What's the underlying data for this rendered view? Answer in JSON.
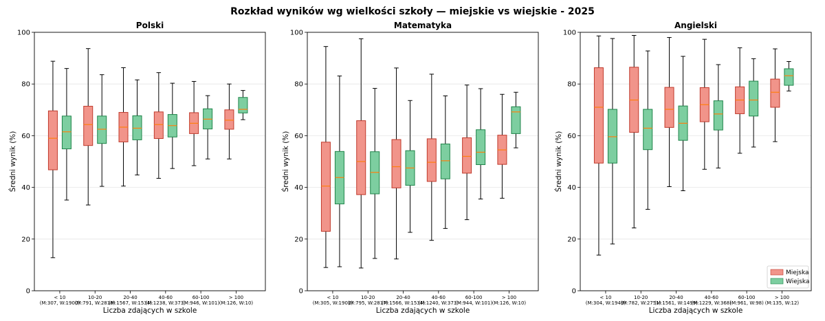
{
  "colors": {
    "urban_fill": "#f1948a",
    "urban_edge": "#c0392b",
    "rural_fill": "#7dcea0",
    "rural_edge": "#1e8449",
    "median": "#ff7f0e",
    "whisker": "#000000",
    "grid": "#e6e6e6"
  },
  "chart_data": {
    "type": "boxplot",
    "title": "Rozkład wyników wg wielkości szkoły — miejskie vs wiejskie - 2025",
    "xlabel": "Liczba zdających w szkole",
    "ylabel": "Średni wynik (%)",
    "ylim": [
      0,
      100
    ],
    "yticks": [
      0,
      20,
      40,
      60,
      80,
      100
    ],
    "legend": {
      "placement": "lower-right",
      "entries": [
        {
          "name": "Miejska",
          "color_key": "urban"
        },
        {
          "name": "Wiejska",
          "color_key": "rural"
        }
      ]
    },
    "subplots": [
      {
        "title": "Polski",
        "categories": [
          "< 10",
          "10-20",
          "20-40",
          "40-60",
          "60-100",
          "> 100"
        ],
        "counts": [
          "(M:307, W:1900)",
          "(M:791, W:2818)",
          "(M:1567, W:1534)",
          "(M:1238, W:373)",
          "(M:946, W:101)",
          "(M:126, W:10)"
        ],
        "series": [
          {
            "name": "Miejska",
            "stats": [
              {
                "min": 12.8,
                "q1": 46.8,
                "median": 59.0,
                "q3": 69.6,
                "max": 88.8
              },
              {
                "min": 33.2,
                "q1": 56.2,
                "median": 64.3,
                "q3": 71.4,
                "max": 93.7
              },
              {
                "min": 40.5,
                "q1": 57.6,
                "median": 63.3,
                "q3": 69.0,
                "max": 86.3
              },
              {
                "min": 43.5,
                "q1": 58.9,
                "median": 64.3,
                "q3": 69.2,
                "max": 84.4
              },
              {
                "min": 48.4,
                "q1": 60.8,
                "median": 64.8,
                "q3": 68.9,
                "max": 81.0
              },
              {
                "min": 51.0,
                "q1": 62.5,
                "median": 66.0,
                "q3": 70.0,
                "max": 80.0
              }
            ]
          },
          {
            "name": "Wiejska",
            "stats": [
              {
                "min": 35.1,
                "q1": 54.9,
                "median": 61.5,
                "q3": 67.6,
                "max": 86.0
              },
              {
                "min": 40.4,
                "q1": 57.0,
                "median": 62.5,
                "q3": 67.6,
                "max": 83.6
              },
              {
                "min": 44.8,
                "q1": 58.4,
                "median": 62.9,
                "q3": 67.7,
                "max": 81.6
              },
              {
                "min": 47.3,
                "q1": 59.5,
                "median": 63.9,
                "q3": 68.2,
                "max": 80.3
              },
              {
                "min": 51.0,
                "q1": 62.6,
                "median": 66.4,
                "q3": 70.4,
                "max": 75.5
              },
              {
                "min": 66.2,
                "q1": 68.8,
                "median": 70.2,
                "q3": 74.8,
                "max": 77.5
              }
            ]
          }
        ]
      },
      {
        "title": "Matematyka",
        "categories": [
          "< 10",
          "10-20",
          "20-40",
          "40-60",
          "60-100",
          "> 100"
        ],
        "counts": [
          "(M:305, W:1901)",
          "(M:795, W:2817)",
          "(M:1566, W:1534)",
          "(M:1240, W:373)",
          "(M:944, W:101)",
          "(M:126, W:10)"
        ],
        "series": [
          {
            "name": "Miejska",
            "stats": [
              {
                "min": 9.0,
                "q1": 23.0,
                "median": 40.5,
                "q3": 57.5,
                "max": 94.5
              },
              {
                "min": 8.8,
                "q1": 37.2,
                "median": 50.0,
                "q3": 65.8,
                "max": 97.5
              },
              {
                "min": 12.3,
                "q1": 39.8,
                "median": 48.0,
                "q3": 58.5,
                "max": 86.2
              },
              {
                "min": 19.5,
                "q1": 42.3,
                "median": 49.7,
                "q3": 58.8,
                "max": 83.8
              },
              {
                "min": 27.5,
                "q1": 45.5,
                "median": 52.0,
                "q3": 59.2,
                "max": 79.6
              },
              {
                "min": 35.8,
                "q1": 48.9,
                "median": 54.5,
                "q3": 60.2,
                "max": 76.0
              }
            ]
          },
          {
            "name": "Wiejska",
            "stats": [
              {
                "min": 9.3,
                "q1": 33.6,
                "median": 43.8,
                "q3": 53.9,
                "max": 83.1
              },
              {
                "min": 12.5,
                "q1": 37.5,
                "median": 45.8,
                "q3": 53.8,
                "max": 78.3
              },
              {
                "min": 22.6,
                "q1": 40.8,
                "median": 47.5,
                "q3": 54.2,
                "max": 73.6
              },
              {
                "min": 24.1,
                "q1": 43.3,
                "median": 50.3,
                "q3": 56.8,
                "max": 75.4
              },
              {
                "min": 35.5,
                "q1": 48.8,
                "median": 53.6,
                "q3": 62.3,
                "max": 78.2
              },
              {
                "min": 55.3,
                "q1": 60.8,
                "median": 69.2,
                "q3": 71.2,
                "max": 76.8
              }
            ]
          }
        ]
      },
      {
        "title": "Angielski",
        "categories": [
          "< 10",
          "10-20",
          "20-40",
          "40-60",
          "60-100",
          "> 100"
        ],
        "counts": [
          "(M:304, W:1949)",
          "(M:782, W:2751)",
          "(M:1561, W:1499)",
          "(M:1229, W:368)",
          "(M:961, W:98)",
          "(M:135, W:12)"
        ],
        "series": [
          {
            "name": "Miejska",
            "stats": [
              {
                "min": 13.8,
                "q1": 49.4,
                "median": 71.0,
                "q3": 86.3,
                "max": 98.6
              },
              {
                "min": 24.3,
                "q1": 61.3,
                "median": 73.8,
                "q3": 86.5,
                "max": 98.8
              },
              {
                "min": 40.3,
                "q1": 63.2,
                "median": 70.2,
                "q3": 78.7,
                "max": 98.0
              },
              {
                "min": 47.0,
                "q1": 65.4,
                "median": 72.0,
                "q3": 78.6,
                "max": 97.3
              },
              {
                "min": 53.2,
                "q1": 68.5,
                "median": 73.8,
                "q3": 78.9,
                "max": 94.0
              },
              {
                "min": 57.7,
                "q1": 71.0,
                "median": 76.8,
                "q3": 81.9,
                "max": 93.6
              }
            ]
          },
          {
            "name": "Wiejska",
            "stats": [
              {
                "min": 18.1,
                "q1": 49.4,
                "median": 59.6,
                "q3": 70.2,
                "max": 97.6
              },
              {
                "min": 31.5,
                "q1": 54.6,
                "median": 62.9,
                "q3": 70.2,
                "max": 92.8
              },
              {
                "min": 38.7,
                "q1": 58.2,
                "median": 64.8,
                "q3": 71.5,
                "max": 90.7
              },
              {
                "min": 47.5,
                "q1": 62.2,
                "median": 68.4,
                "q3": 73.5,
                "max": 87.5
              },
              {
                "min": 55.6,
                "q1": 67.6,
                "median": 73.8,
                "q3": 81.1,
                "max": 89.8
              },
              {
                "min": 77.3,
                "q1": 79.5,
                "median": 83.2,
                "q3": 85.9,
                "max": 88.7
              }
            ]
          }
        ]
      }
    ]
  }
}
